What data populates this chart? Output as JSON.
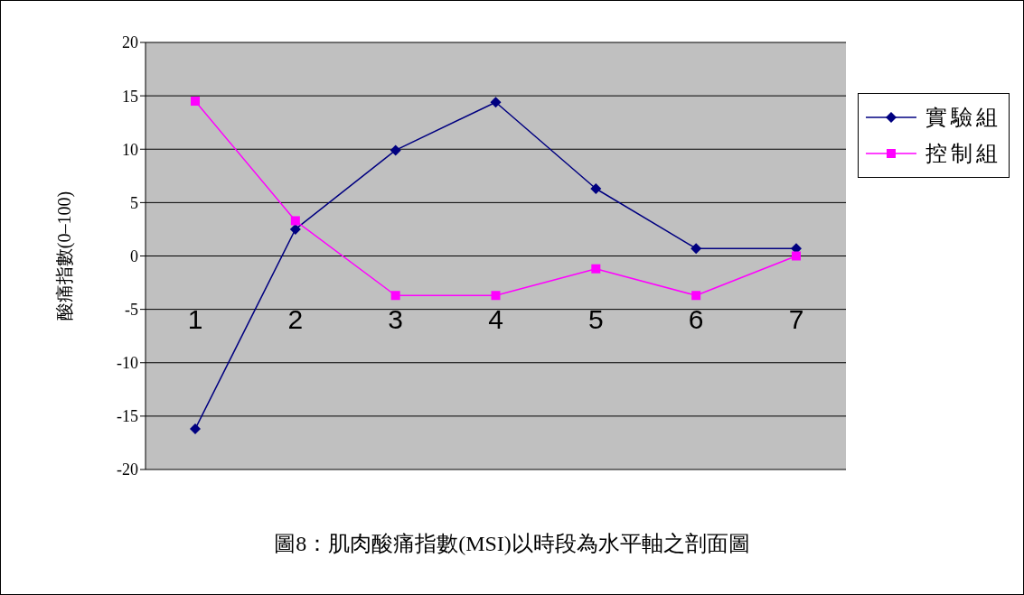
{
  "chart_data": {
    "type": "line",
    "title": "圖8：肌肉酸痛指數(MSI)以時段為水平軸之剖面圖",
    "ylabel": "酸痛指數(0–100)",
    "categories": [
      "1",
      "2",
      "3",
      "4",
      "5",
      "6",
      "7"
    ],
    "series": [
      {
        "name": "實驗組",
        "color": "#000080",
        "marker": "diamond",
        "values": [
          -16.2,
          2.5,
          9.9,
          14.4,
          6.3,
          0.7,
          0.7
        ]
      },
      {
        "name": "控制組",
        "color": "#ff00ff",
        "marker": "square",
        "values": [
          14.5,
          3.3,
          -3.7,
          -3.7,
          -1.2,
          -3.7,
          0
        ]
      }
    ],
    "ylim": [
      -20,
      20
    ],
    "yticks": [
      -20,
      -15,
      -10,
      -5,
      0,
      5,
      10,
      15,
      20
    ],
    "grid": "y",
    "legend": "right"
  }
}
